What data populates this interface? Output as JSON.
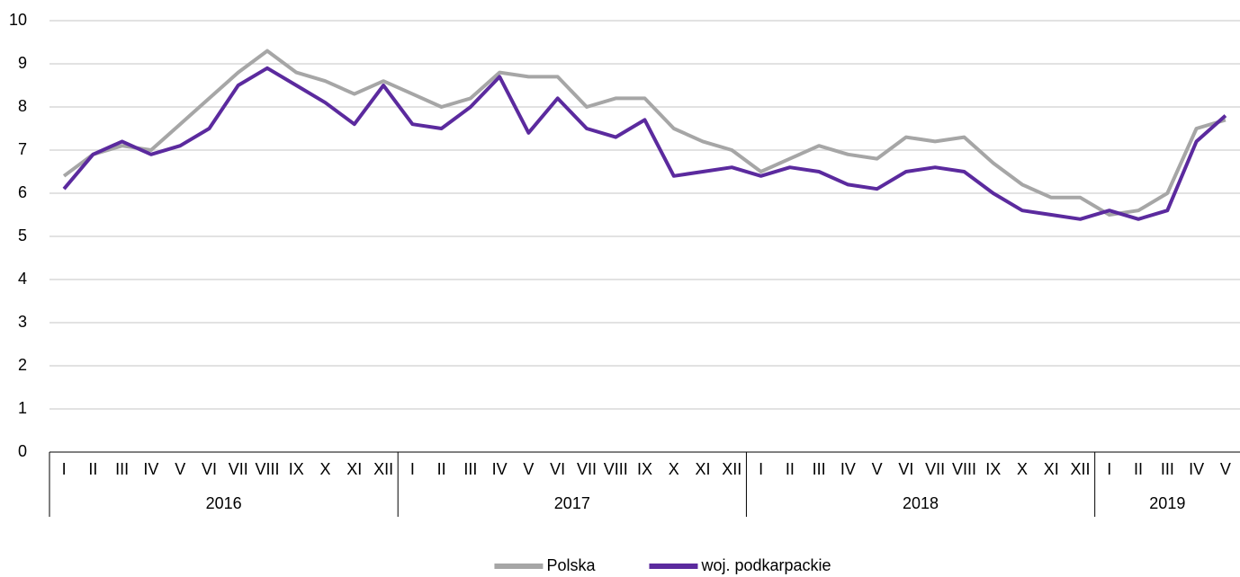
{
  "chart_data": {
    "type": "line",
    "groups": [
      {
        "label": "2016",
        "categories": [
          "I",
          "II",
          "III",
          "IV",
          "V",
          "VI",
          "VII",
          "VIII",
          "IX",
          "X",
          "XI",
          "XII"
        ]
      },
      {
        "label": "2017",
        "categories": [
          "I",
          "II",
          "III",
          "IV",
          "V",
          "VI",
          "VII",
          "VIII",
          "IX",
          "X",
          "XI",
          "XII"
        ]
      },
      {
        "label": "2018",
        "categories": [
          "I",
          "II",
          "III",
          "IV",
          "V",
          "VI",
          "VII",
          "VIII",
          "IX",
          "X",
          "XI",
          "XII"
        ]
      },
      {
        "label": "2019",
        "categories": [
          "I",
          "II",
          "III",
          "IV",
          "V"
        ]
      }
    ],
    "series": [
      {
        "name": "Polska",
        "color": "#a6a6a6",
        "values": [
          6.4,
          6.9,
          7.1,
          7.0,
          7.6,
          8.2,
          8.8,
          9.3,
          8.8,
          8.6,
          8.3,
          8.6,
          8.3,
          8.0,
          8.2,
          8.8,
          8.7,
          8.7,
          8.0,
          8.2,
          8.2,
          7.5,
          7.2,
          7.0,
          6.5,
          6.8,
          7.1,
          6.9,
          6.8,
          7.3,
          7.2,
          7.3,
          6.7,
          6.2,
          5.9,
          5.9,
          5.5,
          5.6,
          6.0,
          7.5,
          7.7
        ]
      },
      {
        "name": "woj. podkarpackie",
        "color": "#5b2a9e",
        "values": [
          6.1,
          6.9,
          7.2,
          6.9,
          7.1,
          7.5,
          8.5,
          8.9,
          8.5,
          8.1,
          7.6,
          8.5,
          7.6,
          7.5,
          8.0,
          8.7,
          7.4,
          8.2,
          7.5,
          7.3,
          7.7,
          6.4,
          6.5,
          6.6,
          6.4,
          6.6,
          6.5,
          6.2,
          6.1,
          6.5,
          6.6,
          6.5,
          6.0,
          5.6,
          5.5,
          5.4,
          5.6,
          5.4,
          5.6,
          7.2,
          7.8
        ]
      }
    ],
    "ylim": [
      0,
      10
    ],
    "yticks": [
      0,
      1,
      2,
      3,
      4,
      5,
      6,
      7,
      8,
      9,
      10
    ],
    "grid": true,
    "legend": "bottom"
  }
}
